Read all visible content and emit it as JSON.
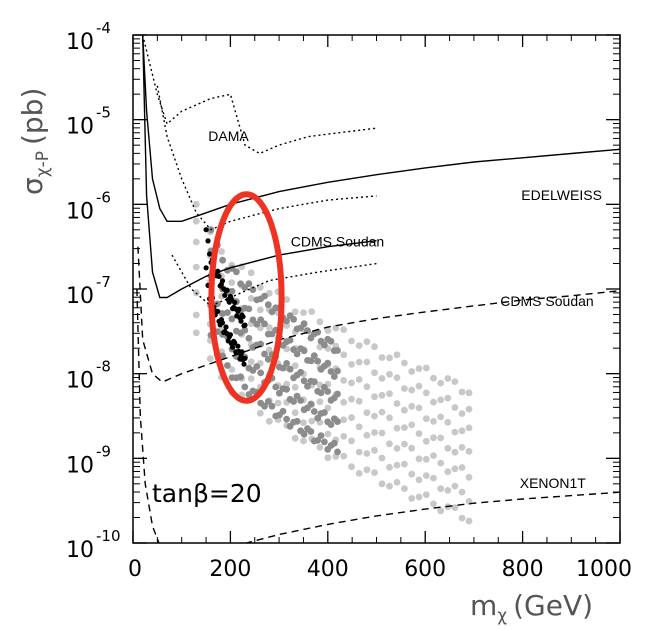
{
  "chart_data": {
    "type": "scatter",
    "title": "",
    "xlabel": "m",
    "xlabel_sub": "χ",
    "xlabel_unit": "(GeV)",
    "ylabel": "σ",
    "ylabel_sub": "χ-P",
    "ylabel_unit": "(pb)",
    "xlim": [
      0,
      1000
    ],
    "ylim_log10": [
      -10,
      -4
    ],
    "yscale": "log",
    "xticks": [
      "0",
      "200",
      "400",
      "600",
      "800",
      "1000"
    ],
    "yticks": [
      {
        "base": "10",
        "exp": "-4",
        "log": -4
      },
      {
        "base": "10",
        "exp": "-5",
        "log": -5
      },
      {
        "base": "10",
        "exp": "-6",
        "log": -6
      },
      {
        "base": "10",
        "exp": "-7",
        "log": -7
      },
      {
        "base": "10",
        "exp": "-8",
        "log": -8
      },
      {
        "base": "10",
        "exp": "-9",
        "log": -9
      },
      {
        "base": "10",
        "exp": "-10",
        "log": -10
      }
    ],
    "annotation": "tanβ=20",
    "curves": [
      {
        "label": "DAMA",
        "style": "dotted",
        "label_x": 196,
        "label_log": -5.25,
        "points": [
          [
            20,
            -4.0
          ],
          [
            50,
            -4.7
          ],
          [
            70,
            -5.05
          ],
          [
            100,
            -4.9
          ],
          [
            160,
            -4.75
          ],
          [
            200,
            -4.7
          ],
          [
            230,
            -5.3
          ],
          [
            260,
            -5.4
          ],
          [
            300,
            -5.3
          ],
          [
            360,
            -5.2
          ],
          [
            500,
            -5.1
          ]
        ]
      },
      {
        "label": "",
        "style": "dotted",
        "points": [
          [
            50,
            -4.6
          ],
          [
            70,
            -5.2
          ],
          [
            100,
            -5.7
          ],
          [
            130,
            -6.1
          ],
          [
            160,
            -6.3
          ],
          [
            200,
            -6.2
          ],
          [
            300,
            -6.05
          ],
          [
            400,
            -5.95
          ],
          [
            500,
            -5.9
          ]
        ]
      },
      {
        "label": "",
        "style": "dotted",
        "points": [
          [
            80,
            -6.6
          ],
          [
            120,
            -7.0
          ],
          [
            160,
            -7.2
          ],
          [
            200,
            -7.1
          ],
          [
            280,
            -6.9
          ],
          [
            380,
            -6.8
          ],
          [
            500,
            -6.7
          ]
        ]
      },
      {
        "label": "EDELWEISS",
        "style": "solid",
        "label_x": 880,
        "label_log": -5.95,
        "points": [
          [
            20,
            -4.0
          ],
          [
            28,
            -4.9
          ],
          [
            40,
            -5.7
          ],
          [
            55,
            -6.05
          ],
          [
            70,
            -6.2
          ],
          [
            100,
            -6.2
          ],
          [
            150,
            -6.1
          ],
          [
            200,
            -6.0
          ],
          [
            300,
            -5.85
          ],
          [
            400,
            -5.74
          ],
          [
            500,
            -5.65
          ],
          [
            600,
            -5.57
          ],
          [
            700,
            -5.5
          ],
          [
            800,
            -5.45
          ],
          [
            900,
            -5.4
          ],
          [
            1000,
            -5.35
          ]
        ]
      },
      {
        "label": "CDMS Soudan",
        "style": "solid",
        "label_x": 420,
        "label_log": -6.5,
        "points": [
          [
            20,
            -4.0
          ],
          [
            28,
            -5.9
          ],
          [
            40,
            -6.8
          ],
          [
            55,
            -7.1
          ],
          [
            70,
            -7.1
          ],
          [
            100,
            -7.0
          ],
          [
            150,
            -6.85
          ],
          [
            200,
            -6.75
          ],
          [
            300,
            -6.6
          ],
          [
            400,
            -6.5
          ],
          [
            500,
            -6.43
          ]
        ]
      },
      {
        "label": "CDMS Soudan",
        "style": "dashed",
        "label_x": 850,
        "label_log": -7.2,
        "points": [
          [
            10,
            -6.5
          ],
          [
            20,
            -7.6
          ],
          [
            40,
            -8.0
          ],
          [
            60,
            -8.1
          ],
          [
            100,
            -8.0
          ],
          [
            200,
            -7.8
          ],
          [
            300,
            -7.6
          ],
          [
            400,
            -7.45
          ],
          [
            500,
            -7.35
          ],
          [
            600,
            -7.27
          ],
          [
            700,
            -7.2
          ],
          [
            800,
            -7.13
          ],
          [
            900,
            -7.08
          ],
          [
            1000,
            -7.02
          ]
        ]
      },
      {
        "label": "XENON1T",
        "style": "dashed",
        "label_x": 862,
        "label_log": -9.35,
        "points": [
          [
            8,
            -7.0
          ],
          [
            15,
            -8.5
          ],
          [
            25,
            -9.3
          ],
          [
            40,
            -9.8
          ],
          [
            60,
            -10.1
          ],
          [
            80,
            -10.25
          ],
          [
            100,
            -10.3
          ],
          [
            140,
            -10.2
          ],
          [
            200,
            -10.05
          ],
          [
            300,
            -9.9
          ],
          [
            400,
            -9.78
          ],
          [
            500,
            -9.68
          ],
          [
            600,
            -9.6
          ],
          [
            700,
            -9.53
          ],
          [
            800,
            -9.48
          ],
          [
            900,
            -9.44
          ],
          [
            1000,
            -9.4
          ]
        ]
      }
    ],
    "scatter_series": [
      {
        "color": "#c8c8c8",
        "bands": [
          [
            -6.0,
            -8.2
          ],
          [
            -6.25,
            -8.45
          ],
          [
            -6.5,
            -8.7
          ],
          [
            -6.75,
            -8.95
          ],
          [
            -7.0,
            -9.2
          ],
          [
            -7.25,
            -9.45
          ],
          [
            -7.5,
            -9.7
          ]
        ],
        "x_start": 130,
        "x_end": 690
      },
      {
        "color": "#8c8c8c",
        "bands": [
          [
            -6.3,
            -7.7
          ],
          [
            -6.6,
            -8.0
          ],
          [
            -6.9,
            -8.3
          ],
          [
            -7.2,
            -8.6
          ],
          [
            -7.5,
            -8.9
          ]
        ],
        "x_start": 160,
        "x_end": 420
      },
      {
        "color": "#000000",
        "bands": [
          [
            -6.3,
            -7.4
          ],
          [
            -6.8,
            -7.85
          ]
        ],
        "x_start": 150,
        "x_end": 230
      }
    ],
    "highlight_ellipse": {
      "cx": 233,
      "cy_log": -7.1,
      "rx": 72,
      "ry_log": 1.22,
      "color": "#ee3322"
    }
  }
}
